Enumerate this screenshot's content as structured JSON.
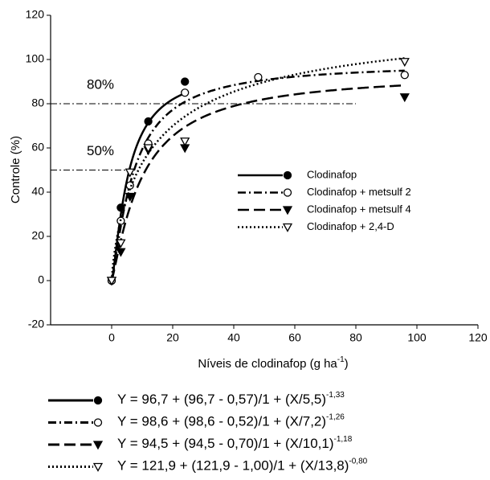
{
  "chart_data": {
    "type": "scatter",
    "ylabel": "Controle (%)",
    "xlabel": {
      "text": "Níveis de clodinafop (g ha",
      "sup": "-1",
      "end": ")"
    },
    "xlim": [
      -20,
      120
    ],
    "ylim": [
      -20,
      120
    ],
    "xticks": [
      0,
      20,
      40,
      60,
      80,
      100,
      120
    ],
    "yticks": [
      -20,
      0,
      20,
      40,
      60,
      80,
      100,
      120
    ],
    "reference_lines": [
      {
        "value": 80,
        "label": "80%",
        "x_end": 80
      },
      {
        "value": 50,
        "label": "50%",
        "x_end": 7
      }
    ],
    "series": [
      {
        "name": "Clodinafop",
        "color": "#000000",
        "marker": "circle-filled",
        "dash": "none",
        "x": [
          0,
          3,
          12,
          24
        ],
        "values": [
          0,
          33,
          72,
          90
        ],
        "fit": {
          "a": 96.7,
          "b": 5.5,
          "c": -1.33
        },
        "equation": "Y = 96,7 + (96,7 - 0,57)/1 + (X/5,5)",
        "exponent": "-1,33"
      },
      {
        "name": "Clodinafop + metsulf 2",
        "color": "#000000",
        "marker": "circle-open",
        "dash": "10 4 2 4",
        "x": [
          0,
          3,
          6,
          12,
          24,
          48,
          96
        ],
        "values": [
          0,
          27,
          43,
          62,
          85,
          92,
          93
        ],
        "fit": {
          "a": 98.6,
          "b": 7.2,
          "c": -1.26
        },
        "equation": "Y = 98,6 + (98,6 - 0,52)/1 + (X/7,2)",
        "exponent": "-1,26"
      },
      {
        "name": "Clodinafop + metsulf 4",
        "color": "#000000",
        "marker": "triangle-filled",
        "dash": "14 6",
        "x": [
          0,
          3,
          6,
          12,
          24,
          96
        ],
        "values": [
          0,
          13,
          38,
          59,
          60,
          83
        ],
        "fit": {
          "a": 94.5,
          "b": 10.1,
          "c": -1.18
        },
        "equation": "Y = 94,5 + (94,5 - 0,70)/1 + (X/10,1)",
        "exponent": "-1,18"
      },
      {
        "name": "Clodinafop + 2,4-D",
        "color": "#000000",
        "marker": "triangle-open",
        "dash": "2 3",
        "x": [
          0,
          3,
          6,
          12,
          24,
          96
        ],
        "values": [
          0,
          17,
          49,
          60,
          63,
          99
        ],
        "fit": {
          "a": 121.9,
          "b": 13.8,
          "c": -0.8
        },
        "equation": "Y = 121,9 + (121,9 - 1,00)/1 + (X/13,8)",
        "exponent": "-0,80"
      }
    ]
  }
}
